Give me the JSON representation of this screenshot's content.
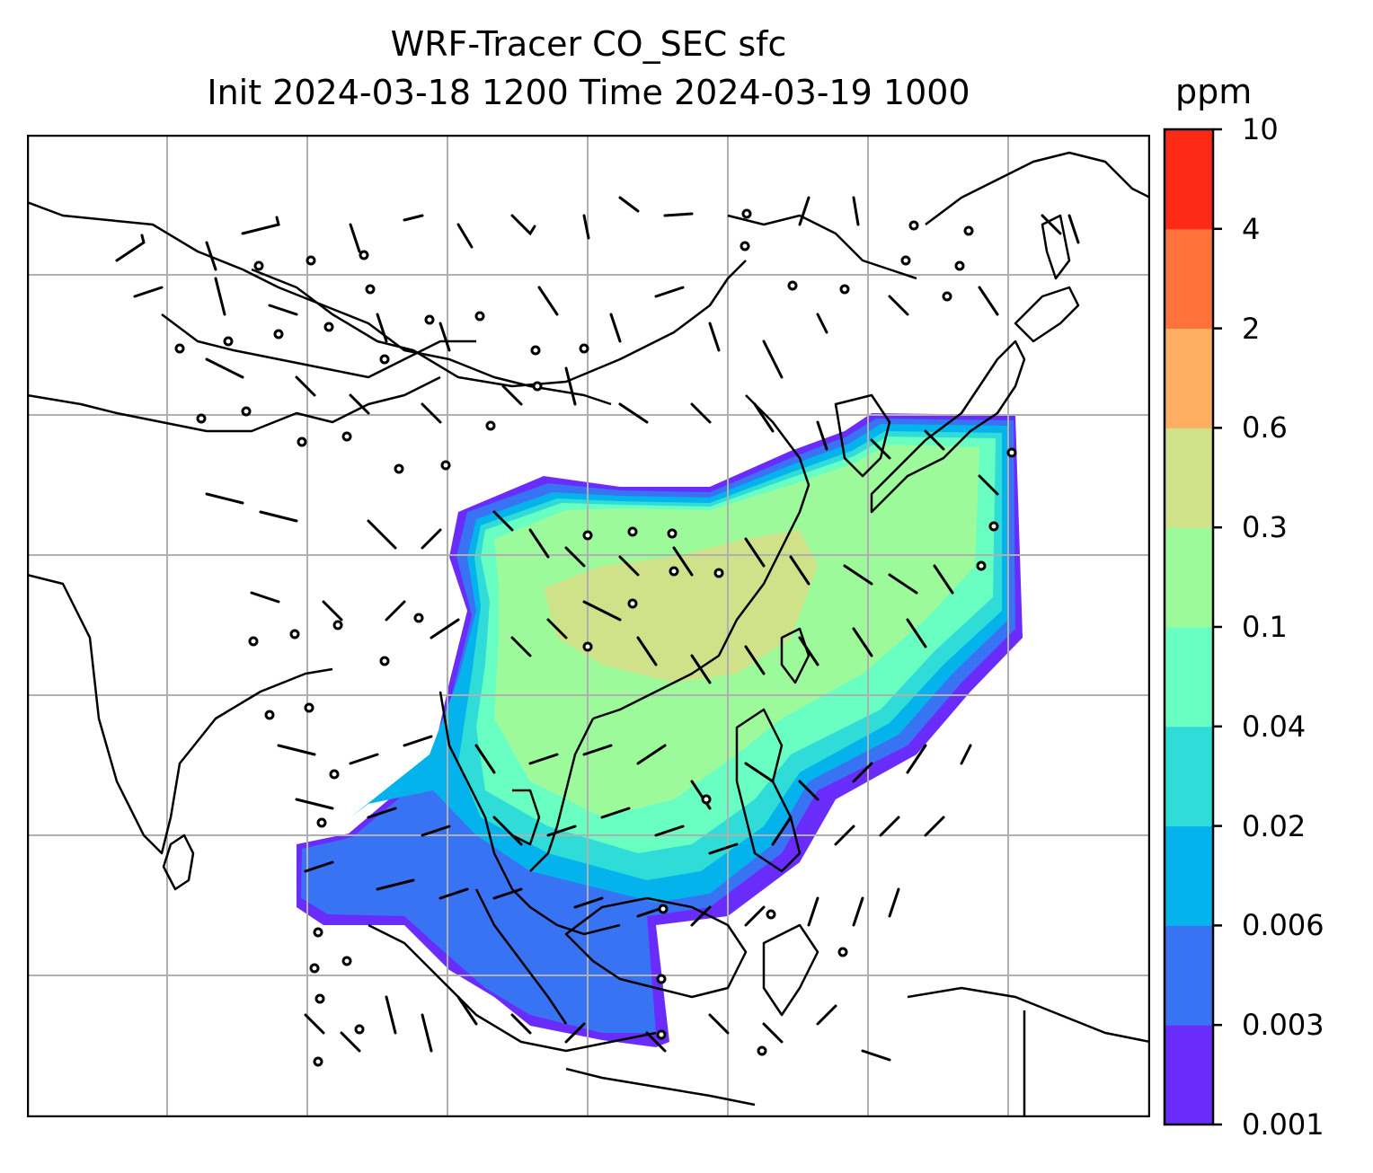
{
  "title": {
    "line1": "WRF-Tracer CO_SEC sfc",
    "line2": "Init 2024-03-18 1200 Time 2024-03-19 1000"
  },
  "colorbar": {
    "unit": "ppm",
    "ticks": [
      "0.001",
      "0.003",
      "0.006",
      "0.02",
      "0.04",
      "0.1",
      "0.3",
      "0.6",
      "2",
      "4",
      "10"
    ],
    "colors": [
      "#6a2cfb",
      "#3873f3",
      "#05b3ec",
      "#2fdcd8",
      "#6affc2",
      "#9dfa9b",
      "#cfe28a",
      "#feaf62",
      "#ff733a",
      "#ff2a16"
    ]
  },
  "map": {
    "outline_color": "#000000",
    "grid_color": "#b0b0b0",
    "wind_barb_color": "#000000"
  }
}
